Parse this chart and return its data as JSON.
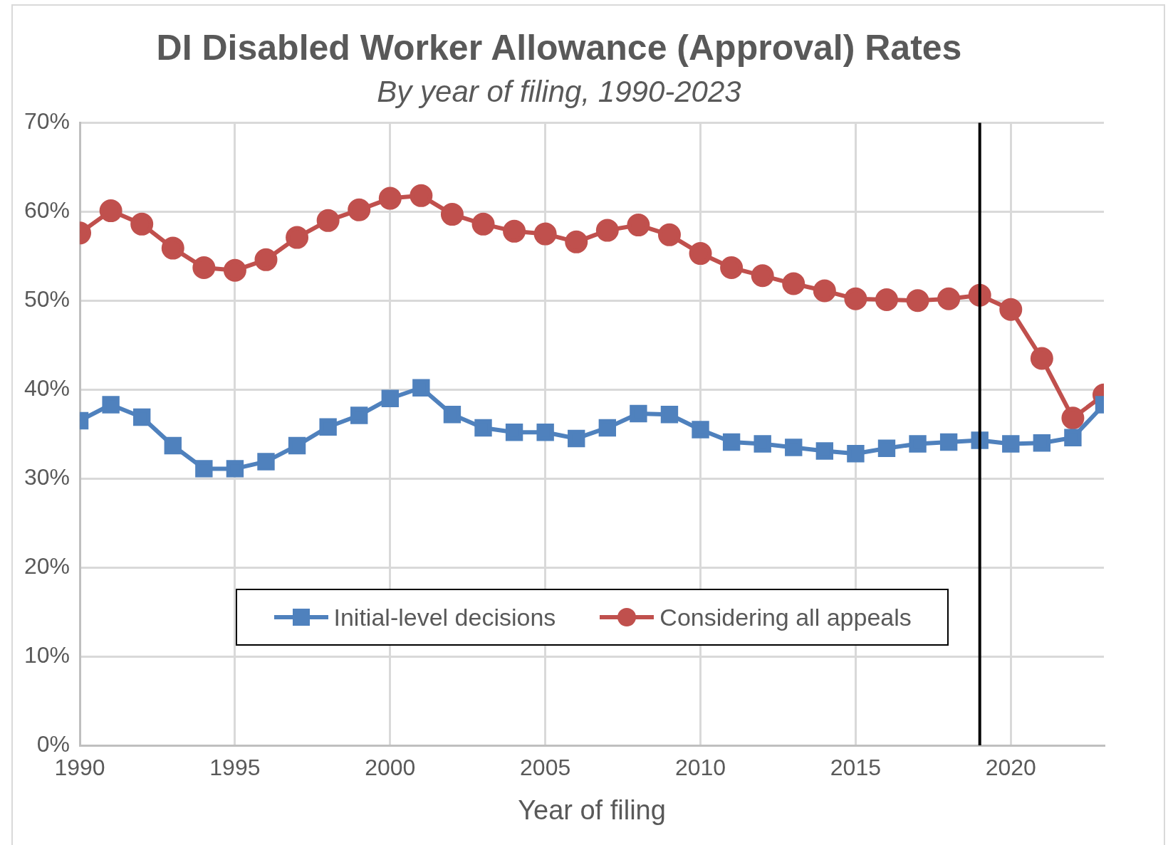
{
  "chart_data": {
    "type": "line",
    "title": "DI Disabled Worker Allowance (Approval) Rates",
    "subtitle": "By year of filing, 1990-2023",
    "xlabel": "Year of filing",
    "x": [
      1990,
      1991,
      1992,
      1993,
      1994,
      1995,
      1996,
      1997,
      1998,
      1999,
      2000,
      2001,
      2002,
      2003,
      2004,
      2005,
      2006,
      2007,
      2008,
      2009,
      2010,
      2011,
      2012,
      2013,
      2014,
      2015,
      2016,
      2017,
      2018,
      2019,
      2020,
      2021,
      2022,
      2023
    ],
    "series": [
      {
        "name": "Initial-level decisions",
        "color": "#4f81bd",
        "marker": "square",
        "values": [
          36.5,
          38.3,
          36.9,
          33.7,
          31.1,
          31.1,
          31.9,
          33.7,
          35.8,
          37.1,
          39.0,
          40.2,
          37.2,
          35.7,
          35.2,
          35.2,
          34.5,
          35.7,
          37.3,
          37.2,
          35.5,
          34.1,
          33.9,
          33.5,
          33.1,
          32.8,
          33.4,
          33.9,
          34.1,
          34.3,
          33.9,
          34.0,
          34.6,
          38.3
        ]
      },
      {
        "name": "Considering all appeals",
        "color": "#c0504d",
        "marker": "circle",
        "values": [
          57.6,
          60.1,
          58.6,
          55.9,
          53.7,
          53.4,
          54.6,
          57.1,
          59.0,
          60.2,
          61.5,
          61.8,
          59.7,
          58.6,
          57.8,
          57.5,
          56.6,
          57.9,
          58.5,
          57.4,
          55.3,
          53.7,
          52.8,
          51.9,
          51.1,
          50.2,
          50.1,
          50.0,
          50.2,
          50.6,
          49.0,
          43.5,
          36.8,
          39.4
        ]
      }
    ],
    "xlim": [
      1990,
      2023
    ],
    "xticks": [
      1990,
      1995,
      2000,
      2005,
      2010,
      2015,
      2020
    ],
    "ylim": [
      0,
      70
    ],
    "yticks": [
      {
        "value": 0,
        "label": "0%"
      },
      {
        "value": 10,
        "label": "10%"
      },
      {
        "value": 20,
        "label": "20%"
      },
      {
        "value": 30,
        "label": "30%"
      },
      {
        "value": 40,
        "label": "40%"
      },
      {
        "value": 50,
        "label": "50%"
      },
      {
        "value": 60,
        "label": "60%"
      },
      {
        "value": 70,
        "label": "70%"
      }
    ],
    "ref_lines": [
      {
        "axis": "x",
        "value": 2019,
        "color": "#000000"
      }
    ],
    "grid": true,
    "legend": "bottom",
    "line_style": "solid"
  }
}
